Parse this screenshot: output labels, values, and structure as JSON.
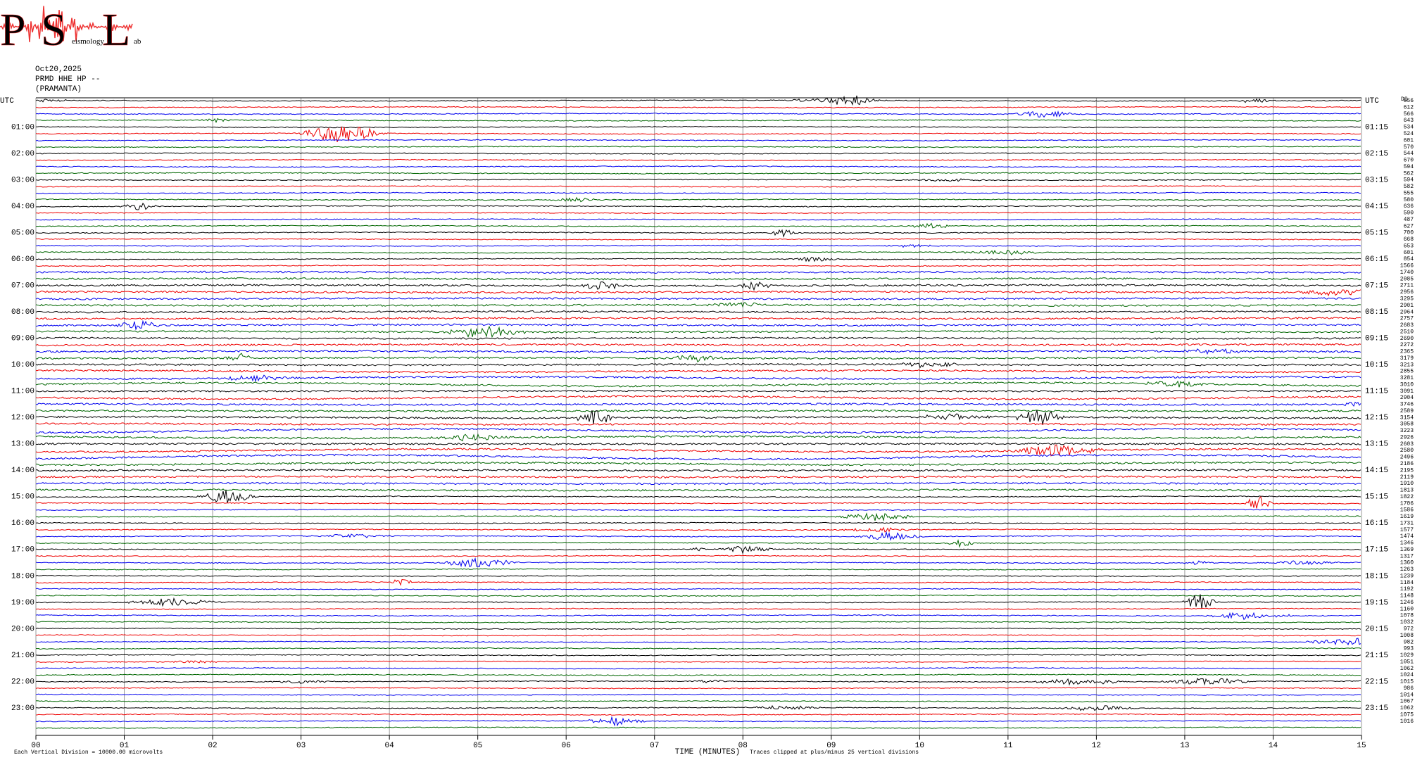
{
  "logo": {
    "letters": [
      "P",
      "S",
      "L"
    ],
    "small": [
      "eismology",
      "ab"
    ]
  },
  "header": {
    "date": "Oct20,2025",
    "station": "PRMD HHE HP --",
    "location": "(PRAMANTA)"
  },
  "left_labels": [
    "UTC",
    "01:00",
    "02:00",
    "03:00",
    "04:00",
    "05:00",
    "06:00",
    "07:00",
    "08:00",
    "09:00",
    "10:00",
    "11:00",
    "12:00",
    "13:00",
    "14:00",
    "15:00",
    "16:00",
    "17:00",
    "18:00",
    "19:00",
    "20:00",
    "21:00",
    "22:00",
    "23:00"
  ],
  "right_labels": [
    "UTC",
    "01:15",
    "02:15",
    "03:15",
    "04:15",
    "05:15",
    "06:15",
    "07:15",
    "08:15",
    "09:15",
    "10:15",
    "11:15",
    "12:15",
    "13:15",
    "14:15",
    "15:15",
    "16:15",
    "17:15",
    "18:15",
    "19:15",
    "20:15",
    "21:15",
    "22:15",
    "23:15"
  ],
  "right_header": "DS",
  "trace_scales": [
    "656",
    "612",
    "566",
    "643",
    "534",
    "524",
    "601",
    "570",
    "544",
    "670",
    "594",
    "562",
    "594",
    "582",
    "555",
    "580",
    "636",
    "590",
    "487",
    "627",
    "700",
    "668",
    "653",
    "601",
    "854",
    "1566",
    "1740",
    "2085",
    "2711",
    "2956",
    "3295",
    "2901",
    "2964",
    "2757",
    "2683",
    "2510",
    "2690",
    "2272",
    "2365",
    "3179",
    "3213",
    "2855",
    "3281",
    "3010",
    "3091",
    "2904",
    "3746",
    "2589",
    "3154",
    "3058",
    "3223",
    "2926",
    "2603",
    "2580",
    "2496",
    "2186",
    "2195",
    "2119",
    "1910",
    "1813",
    "1822",
    "1706",
    "1586",
    "1619",
    "1731",
    "1577",
    "1474",
    "1346",
    "1369",
    "1317",
    "1360",
    "1263",
    "1239",
    "1184",
    "1192",
    "1148",
    "1246",
    "1160",
    "1078",
    "1032",
    "972",
    "1008",
    "982",
    "993",
    "1029",
    "1051",
    "1062",
    "1024",
    "1015",
    "986",
    "1014",
    "1067",
    "1062",
    "1075",
    "1016"
  ],
  "x_axis": {
    "labels": [
      "00",
      "01",
      "02",
      "03",
      "04",
      "05",
      "06",
      "07",
      "08",
      "09",
      "10",
      "11",
      "12",
      "13",
      "14",
      "15"
    ],
    "title": "TIME (MINUTES)"
  },
  "footer": {
    "left": "Each Vertical Division = 10000.00 microvolts",
    "right": "Traces clipped at plus/minus 25 vertical divisions"
  }
}
